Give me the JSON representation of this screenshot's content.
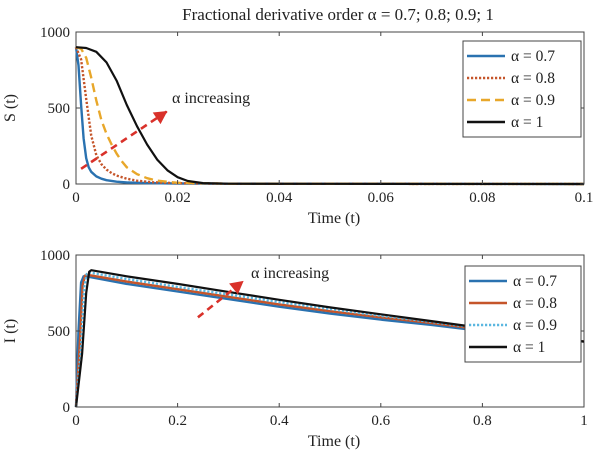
{
  "figure": {
    "title": "Fractional derivative order α = 0.7; 0.8; 0.9; 1"
  },
  "chart_data": [
    {
      "type": "line",
      "ylabel": "S (t)",
      "xlabel": "Time (t)",
      "xlim": [
        0,
        0.1
      ],
      "ylim": [
        0,
        1000
      ],
      "xticks": [
        "0",
        "0.02",
        "0.04",
        "0.06",
        "0.08",
        "0.1"
      ],
      "yticks": [
        "0",
        "500",
        "1000"
      ],
      "xtick_values": [
        0,
        0.02,
        0.04,
        0.06,
        0.08,
        0.1
      ],
      "ytick_values": [
        0,
        500,
        1000
      ],
      "grid": false,
      "legend_position": "top-right",
      "annotation": {
        "text": "α increasing",
        "arrow_from": [
          0.001,
          100
        ],
        "arrow_to": [
          0.018,
          480
        ]
      },
      "series": [
        {
          "name": "α = 0.7",
          "color": "#2a72b0",
          "dash": "solid",
          "x": [
            0,
            0.0005,
            0.001,
            0.0015,
            0.002,
            0.0025,
            0.003,
            0.004,
            0.005,
            0.006,
            0.008,
            0.01,
            0.015,
            0.02,
            0.03,
            0.05,
            0.1
          ],
          "y": [
            900,
            780,
            520,
            300,
            170,
            110,
            80,
            50,
            35,
            25,
            15,
            10,
            5,
            3,
            2,
            1,
            0
          ]
        },
        {
          "name": "α = 0.8",
          "color": "#c5552a",
          "dash": "dotted",
          "x": [
            0,
            0.001,
            0.002,
            0.003,
            0.004,
            0.005,
            0.006,
            0.007,
            0.008,
            0.01,
            0.012,
            0.015,
            0.02,
            0.03,
            0.05,
            0.1
          ],
          "y": [
            900,
            820,
            560,
            320,
            190,
            130,
            95,
            72,
            55,
            35,
            22,
            12,
            5,
            2,
            1,
            0
          ]
        },
        {
          "name": "α = 0.9",
          "color": "#e8a72a",
          "dash": "dashed",
          "x": [
            0,
            0.001,
            0.002,
            0.003,
            0.004,
            0.005,
            0.006,
            0.007,
            0.008,
            0.009,
            0.01,
            0.012,
            0.014,
            0.016,
            0.02,
            0.03,
            0.05,
            0.1
          ],
          "y": [
            900,
            890,
            830,
            700,
            550,
            420,
            330,
            260,
            200,
            150,
            110,
            65,
            38,
            22,
            8,
            2,
            1,
            0
          ]
        },
        {
          "name": "α = 1",
          "color": "#111111",
          "dash": "solid",
          "x": [
            0,
            0.002,
            0.004,
            0.006,
            0.008,
            0.01,
            0.012,
            0.014,
            0.016,
            0.018,
            0.02,
            0.022,
            0.025,
            0.03,
            0.05,
            0.1
          ],
          "y": [
            900,
            895,
            870,
            800,
            680,
            520,
            380,
            260,
            160,
            90,
            45,
            20,
            6,
            2,
            1,
            0
          ]
        }
      ]
    },
    {
      "type": "line",
      "ylabel": "I (t)",
      "xlabel": "Time (t)",
      "xlim": [
        0,
        1
      ],
      "ylim": [
        0,
        1000
      ],
      "xticks": [
        "0",
        "0.2",
        "0.4",
        "0.6",
        "0.8",
        "1"
      ],
      "yticks": [
        "0",
        "500",
        "1000"
      ],
      "xtick_values": [
        0,
        0.2,
        0.4,
        0.6,
        0.8,
        1
      ],
      "ytick_values": [
        0,
        500,
        1000
      ],
      "grid": false,
      "legend_position": "right",
      "annotation": {
        "text": "α increasing",
        "arrow_from": [
          0.24,
          590
        ],
        "arrow_to": [
          0.33,
          830
        ]
      },
      "series": [
        {
          "name": "α = 0.7",
          "color": "#2a72b0",
          "dash": "solid",
          "x": [
            0,
            0.005,
            0.01,
            0.015,
            0.02,
            0.1,
            0.2,
            0.3,
            0.4,
            0.5,
            0.6,
            0.7,
            0.8,
            0.9,
            1.0
          ],
          "y": [
            0,
            500,
            820,
            860,
            860,
            810,
            760,
            710,
            660,
            615,
            575,
            540,
            500,
            470,
            430
          ]
        },
        {
          "name": "α = 0.8",
          "color": "#c5552a",
          "dash": "solid",
          "x": [
            0,
            0.008,
            0.013,
            0.018,
            0.022,
            0.1,
            0.2,
            0.3,
            0.4,
            0.5,
            0.6,
            0.7,
            0.8,
            0.9,
            1.0
          ],
          "y": [
            0,
            450,
            800,
            865,
            870,
            825,
            775,
            725,
            675,
            630,
            590,
            552,
            510,
            477,
            430
          ]
        },
        {
          "name": "α = 0.9",
          "color": "#5bb7e0",
          "dash": "dotted",
          "x": [
            0,
            0.01,
            0.016,
            0.021,
            0.026,
            0.1,
            0.2,
            0.3,
            0.4,
            0.5,
            0.6,
            0.7,
            0.8,
            0.9,
            1.0
          ],
          "y": [
            0,
            400,
            780,
            875,
            885,
            842,
            790,
            740,
            690,
            645,
            600,
            560,
            515,
            480,
            430
          ]
        },
        {
          "name": "α = 1",
          "color": "#111111",
          "dash": "solid",
          "x": [
            0,
            0.012,
            0.02,
            0.026,
            0.03,
            0.1,
            0.2,
            0.3,
            0.4,
            0.5,
            0.6,
            0.7,
            0.8,
            0.9,
            1.0
          ],
          "y": [
            0,
            350,
            750,
            890,
            900,
            860,
            810,
            757,
            705,
            655,
            610,
            565,
            520,
            480,
            430
          ]
        }
      ]
    }
  ]
}
